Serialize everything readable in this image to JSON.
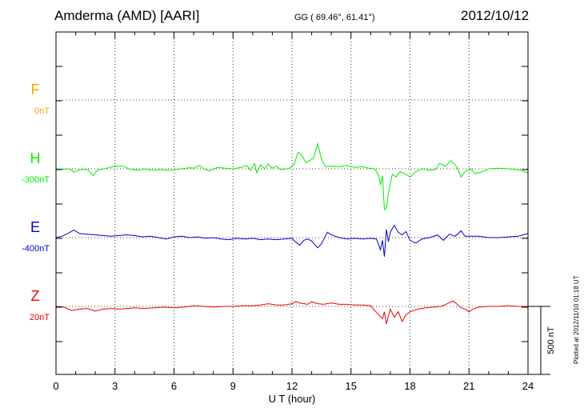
{
  "header": {
    "station": "Amderma (AMD)  [AARI]",
    "coords": "GG ( 69.46°,  61.41°)",
    "date": "2012/10/12"
  },
  "footer": "Plotted at 2012/11/10 01:18 UT",
  "chart_data": {
    "type": "line",
    "xlabel": "U T (hour)",
    "xlim": [
      0,
      24
    ],
    "xticks": [
      0,
      3,
      6,
      9,
      12,
      15,
      18,
      21,
      24
    ],
    "scale_bar_label": "500 nT",
    "scale_bar_nT": 500,
    "grid": true,
    "series": [
      {
        "name": "F",
        "baseline_label": "0nT",
        "color": "#FFA500",
        "points": []
      },
      {
        "name": "H",
        "baseline_label": "-300nT",
        "color": "#00EE00",
        "points": [
          [
            0,
            0
          ],
          [
            0.3,
            -5
          ],
          [
            0.7,
            0
          ],
          [
            0.9,
            -25
          ],
          [
            1.2,
            -8
          ],
          [
            1.6,
            -5
          ],
          [
            1.9,
            -50
          ],
          [
            2.1,
            -10
          ],
          [
            2.6,
            5
          ],
          [
            3.0,
            20
          ],
          [
            3.4,
            20
          ],
          [
            3.8,
            -5
          ],
          [
            4.2,
            -10
          ],
          [
            4.5,
            -2
          ],
          [
            4.9,
            -12
          ],
          [
            5.3,
            -5
          ],
          [
            5.7,
            -12
          ],
          [
            6.0,
            -8
          ],
          [
            6.4,
            0
          ],
          [
            6.8,
            8
          ],
          [
            7.0,
            5
          ],
          [
            7.3,
            25
          ],
          [
            7.5,
            0
          ],
          [
            7.8,
            -15
          ],
          [
            8.2,
            10
          ],
          [
            8.6,
            5
          ],
          [
            9.0,
            0
          ],
          [
            9.4,
            10
          ],
          [
            9.7,
            25
          ],
          [
            9.9,
            -10
          ],
          [
            10.1,
            40
          ],
          [
            10.2,
            -30
          ],
          [
            10.4,
            30
          ],
          [
            10.6,
            0
          ],
          [
            10.8,
            35
          ],
          [
            11.0,
            5
          ],
          [
            11.2,
            20
          ],
          [
            11.4,
            -5
          ],
          [
            11.8,
            0
          ],
          [
            12.1,
            30
          ],
          [
            12.3,
            120
          ],
          [
            12.5,
            100
          ],
          [
            12.7,
            45
          ],
          [
            12.9,
            60
          ],
          [
            13.1,
            80
          ],
          [
            13.3,
            185
          ],
          [
            13.5,
            70
          ],
          [
            13.7,
            15
          ],
          [
            14.0,
            20
          ],
          [
            14.4,
            15
          ],
          [
            14.8,
            25
          ],
          [
            15.2,
            10
          ],
          [
            15.6,
            15
          ],
          [
            15.9,
            5
          ],
          [
            16.2,
            0
          ],
          [
            16.4,
            -45
          ],
          [
            16.5,
            -120
          ],
          [
            16.6,
            -50
          ],
          [
            16.7,
            -300
          ],
          [
            16.8,
            -290
          ],
          [
            16.9,
            -180
          ],
          [
            17.0,
            -110
          ],
          [
            17.1,
            -40
          ],
          [
            17.3,
            -60
          ],
          [
            17.5,
            -20
          ],
          [
            17.8,
            -40
          ],
          [
            18.0,
            -60
          ],
          [
            18.3,
            -20
          ],
          [
            18.6,
            0
          ],
          [
            19.0,
            -10
          ],
          [
            19.3,
            -5
          ],
          [
            19.5,
            40
          ],
          [
            19.8,
            20
          ],
          [
            20.1,
            60
          ],
          [
            20.4,
            10
          ],
          [
            20.6,
            -60
          ],
          [
            20.8,
            -20
          ],
          [
            21.1,
            0
          ],
          [
            21.3,
            -35
          ],
          [
            21.6,
            -25
          ],
          [
            22.0,
            0
          ],
          [
            22.5,
            5
          ],
          [
            23.0,
            0
          ],
          [
            23.6,
            -10
          ],
          [
            24.0,
            -30
          ]
        ]
      },
      {
        "name": "E",
        "baseline_label": "-400nT",
        "color": "#0000CC",
        "points": [
          [
            0,
            0
          ],
          [
            0.3,
            10
          ],
          [
            0.6,
            30
          ],
          [
            0.9,
            55
          ],
          [
            1.2,
            30
          ],
          [
            1.6,
            25
          ],
          [
            2.0,
            20
          ],
          [
            2.4,
            15
          ],
          [
            2.8,
            10
          ],
          [
            3.2,
            15
          ],
          [
            3.6,
            20
          ],
          [
            4.0,
            15
          ],
          [
            4.4,
            5
          ],
          [
            4.8,
            10
          ],
          [
            5.2,
            0
          ],
          [
            5.6,
            -10
          ],
          [
            6.0,
            5
          ],
          [
            6.4,
            10
          ],
          [
            6.8,
            0
          ],
          [
            7.2,
            5
          ],
          [
            7.6,
            -5
          ],
          [
            8.0,
            0
          ],
          [
            8.4,
            -10
          ],
          [
            8.8,
            -15
          ],
          [
            9.2,
            -5
          ],
          [
            9.6,
            -10
          ],
          [
            10.0,
            -5
          ],
          [
            10.4,
            -15
          ],
          [
            10.8,
            -10
          ],
          [
            11.2,
            -15
          ],
          [
            11.6,
            -10
          ],
          [
            12.0,
            -5
          ],
          [
            12.2,
            -35
          ],
          [
            12.4,
            -55
          ],
          [
            12.6,
            -20
          ],
          [
            12.8,
            -10
          ],
          [
            13.0,
            -25
          ],
          [
            13.3,
            -75
          ],
          [
            13.5,
            -45
          ],
          [
            13.8,
            40
          ],
          [
            14.0,
            20
          ],
          [
            14.4,
            0
          ],
          [
            14.8,
            -10
          ],
          [
            15.2,
            -5
          ],
          [
            15.6,
            -10
          ],
          [
            16.0,
            -5
          ],
          [
            16.3,
            -10
          ],
          [
            16.5,
            -90
          ],
          [
            16.6,
            -20
          ],
          [
            16.7,
            -140
          ],
          [
            16.8,
            60
          ],
          [
            16.9,
            -30
          ],
          [
            17.0,
            40
          ],
          [
            17.2,
            90
          ],
          [
            17.4,
            40
          ],
          [
            17.6,
            20
          ],
          [
            17.8,
            45
          ],
          [
            18.0,
            -20
          ],
          [
            18.3,
            -40
          ],
          [
            18.6,
            -10
          ],
          [
            19.0,
            0
          ],
          [
            19.4,
            20
          ],
          [
            19.7,
            -20
          ],
          [
            20.0,
            25
          ],
          [
            20.3,
            10
          ],
          [
            20.6,
            50
          ],
          [
            20.8,
            10
          ],
          [
            21.1,
            10
          ],
          [
            21.5,
            10
          ],
          [
            22.0,
            0
          ],
          [
            22.5,
            0
          ],
          [
            23.0,
            5
          ],
          [
            23.5,
            10
          ],
          [
            24.0,
            30
          ]
        ]
      },
      {
        "name": "Z",
        "baseline_label": "20nT",
        "color": "#EE0000",
        "points": [
          [
            0,
            0
          ],
          [
            0.4,
            -5
          ],
          [
            0.8,
            -30
          ],
          [
            1.2,
            -20
          ],
          [
            1.6,
            -15
          ],
          [
            2.0,
            -35
          ],
          [
            2.4,
            -20
          ],
          [
            2.8,
            -15
          ],
          [
            3.2,
            -20
          ],
          [
            3.6,
            -15
          ],
          [
            4.0,
            -10
          ],
          [
            4.5,
            -15
          ],
          [
            5.0,
            -10
          ],
          [
            5.5,
            -5
          ],
          [
            6.0,
            -10
          ],
          [
            6.5,
            -5
          ],
          [
            7.0,
            5
          ],
          [
            7.5,
            0
          ],
          [
            8.0,
            -5
          ],
          [
            8.5,
            0
          ],
          [
            9.0,
            0
          ],
          [
            9.5,
            5
          ],
          [
            10.0,
            5
          ],
          [
            10.4,
            10
          ],
          [
            10.8,
            20
          ],
          [
            11.2,
            10
          ],
          [
            11.6,
            10
          ],
          [
            12.0,
            20
          ],
          [
            12.2,
            35
          ],
          [
            12.4,
            25
          ],
          [
            12.8,
            15
          ],
          [
            13.0,
            35
          ],
          [
            13.3,
            20
          ],
          [
            13.6,
            15
          ],
          [
            14.0,
            25
          ],
          [
            14.4,
            15
          ],
          [
            14.8,
            15
          ],
          [
            15.2,
            10
          ],
          [
            15.6,
            10
          ],
          [
            16.0,
            5
          ],
          [
            16.2,
            -30
          ],
          [
            16.4,
            -60
          ],
          [
            16.6,
            -90
          ],
          [
            16.7,
            -40
          ],
          [
            16.8,
            -130
          ],
          [
            16.9,
            -70
          ],
          [
            17.0,
            -20
          ],
          [
            17.2,
            -80
          ],
          [
            17.4,
            -40
          ],
          [
            17.6,
            -110
          ],
          [
            17.8,
            -60
          ],
          [
            18.0,
            -40
          ],
          [
            18.4,
            -20
          ],
          [
            18.8,
            -10
          ],
          [
            19.2,
            -5
          ],
          [
            19.6,
            0
          ],
          [
            19.9,
            20
          ],
          [
            20.2,
            40
          ],
          [
            20.4,
            15
          ],
          [
            20.6,
            -10
          ],
          [
            20.8,
            -20
          ],
          [
            21.0,
            -40
          ],
          [
            21.2,
            -20
          ],
          [
            21.5,
            -5
          ],
          [
            22.0,
            0
          ],
          [
            22.5,
            0
          ],
          [
            23.0,
            5
          ],
          [
            23.5,
            0
          ],
          [
            24.0,
            0
          ]
        ]
      }
    ]
  }
}
